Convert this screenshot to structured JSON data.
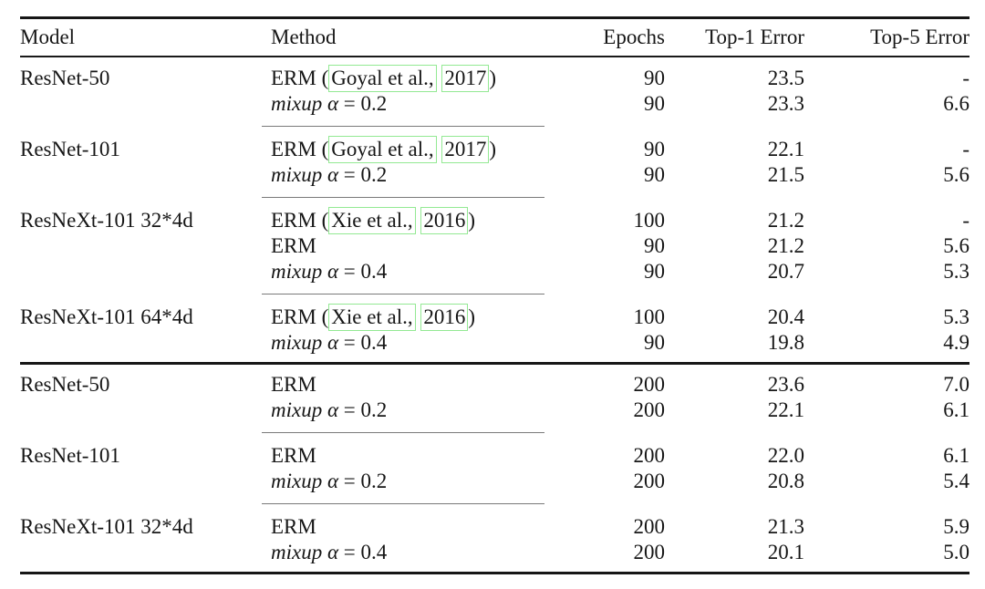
{
  "table": {
    "header": {
      "model": "Model",
      "method": "Method",
      "epochs": "Epochs",
      "top1": "Top-1 Error",
      "top5": "Top-5 Error"
    },
    "colors": {
      "link_box": "#93e993",
      "rule_heavy": "#161616",
      "rule_mid": "#7a7a7a",
      "text": "#161616"
    },
    "sections": [
      {
        "groups": [
          {
            "model": "ResNet-50",
            "rows": [
              {
                "method": [
                  {
                    "t": "ERM (",
                    "s": "plain"
                  },
                  {
                    "t": "Goyal et al.,",
                    "s": "link"
                  },
                  {
                    "t": " ",
                    "s": "plain"
                  },
                  {
                    "t": "2017",
                    "s": "link"
                  },
                  {
                    "t": ")",
                    "s": "plain"
                  }
                ],
                "epochs": "90",
                "top1": "23.5",
                "top5": "-",
                "bold": false
              },
              {
                "method": [
                  {
                    "t": "mixup",
                    "s": "italic"
                  },
                  {
                    "t": " ",
                    "s": "plain"
                  },
                  {
                    "t": "α",
                    "s": "italic"
                  },
                  {
                    "t": " = 0.2",
                    "s": "plain"
                  }
                ],
                "epochs": "90",
                "top1": "23.3",
                "top5": "6.6",
                "bold": true
              }
            ]
          },
          {
            "model": "ResNet-101",
            "rows": [
              {
                "method": [
                  {
                    "t": "ERM (",
                    "s": "plain"
                  },
                  {
                    "t": "Goyal et al.,",
                    "s": "link"
                  },
                  {
                    "t": " ",
                    "s": "plain"
                  },
                  {
                    "t": "2017",
                    "s": "link"
                  },
                  {
                    "t": ")",
                    "s": "plain"
                  }
                ],
                "epochs": "90",
                "top1": "22.1",
                "top5": "-",
                "bold": false
              },
              {
                "method": [
                  {
                    "t": "mixup",
                    "s": "italic"
                  },
                  {
                    "t": " ",
                    "s": "plain"
                  },
                  {
                    "t": "α",
                    "s": "italic"
                  },
                  {
                    "t": " = 0.2",
                    "s": "plain"
                  }
                ],
                "epochs": "90",
                "top1": "21.5",
                "top5": "5.6",
                "bold": true
              }
            ]
          },
          {
            "model": "ResNeXt-101 32*4d",
            "rows": [
              {
                "method": [
                  {
                    "t": "ERM (",
                    "s": "plain"
                  },
                  {
                    "t": "Xie et al.,",
                    "s": "link"
                  },
                  {
                    "t": " ",
                    "s": "plain"
                  },
                  {
                    "t": "2016",
                    "s": "link"
                  },
                  {
                    "t": ")",
                    "s": "plain"
                  }
                ],
                "epochs": "100",
                "top1": "21.2",
                "top5": "-",
                "bold": false
              },
              {
                "method": [
                  {
                    "t": "ERM",
                    "s": "plain"
                  }
                ],
                "epochs": "90",
                "top1": "21.2",
                "top5": "5.6",
                "bold": false
              },
              {
                "method": [
                  {
                    "t": "mixup",
                    "s": "italic"
                  },
                  {
                    "t": " ",
                    "s": "plain"
                  },
                  {
                    "t": "α",
                    "s": "italic"
                  },
                  {
                    "t": " = 0.4",
                    "s": "plain"
                  }
                ],
                "epochs": "90",
                "top1": "20.7",
                "top5": "5.3",
                "bold": true
              }
            ]
          },
          {
            "model": "ResNeXt-101 64*4d",
            "rows": [
              {
                "method": [
                  {
                    "t": "ERM (",
                    "s": "plain"
                  },
                  {
                    "t": "Xie et al.,",
                    "s": "link"
                  },
                  {
                    "t": " ",
                    "s": "plain"
                  },
                  {
                    "t": "2016",
                    "s": "link"
                  },
                  {
                    "t": ")",
                    "s": "plain"
                  }
                ],
                "epochs": "100",
                "top1": "20.4",
                "top5": "5.3",
                "bold": false
              },
              {
                "method": [
                  {
                    "t": "mixup",
                    "s": "italic"
                  },
                  {
                    "t": " ",
                    "s": "plain"
                  },
                  {
                    "t": "α",
                    "s": "italic"
                  },
                  {
                    "t": " = 0.4",
                    "s": "plain"
                  }
                ],
                "epochs": "90",
                "top1": "19.8",
                "top5": "4.9",
                "bold": true
              }
            ]
          }
        ]
      },
      {
        "groups": [
          {
            "model": "ResNet-50",
            "rows": [
              {
                "method": [
                  {
                    "t": "ERM",
                    "s": "plain"
                  }
                ],
                "epochs": "200",
                "top1": "23.6",
                "top5": "7.0",
                "bold": false
              },
              {
                "method": [
                  {
                    "t": "mixup",
                    "s": "italic"
                  },
                  {
                    "t": " ",
                    "s": "plain"
                  },
                  {
                    "t": "α",
                    "s": "italic"
                  },
                  {
                    "t": " = 0.2",
                    "s": "plain"
                  }
                ],
                "epochs": "200",
                "top1": "22.1",
                "top5": "6.1",
                "bold": true
              }
            ]
          },
          {
            "model": "ResNet-101",
            "rows": [
              {
                "method": [
                  {
                    "t": "ERM",
                    "s": "plain"
                  }
                ],
                "epochs": "200",
                "top1": "22.0",
                "top5": "6.1",
                "bold": false
              },
              {
                "method": [
                  {
                    "t": "mixup",
                    "s": "italic"
                  },
                  {
                    "t": " ",
                    "s": "plain"
                  },
                  {
                    "t": "α",
                    "s": "italic"
                  },
                  {
                    "t": " = 0.2",
                    "s": "plain"
                  }
                ],
                "epochs": "200",
                "top1": "20.8",
                "top5": "5.4",
                "bold": true
              }
            ]
          },
          {
            "model": "ResNeXt-101 32*4d",
            "rows": [
              {
                "method": [
                  {
                    "t": "ERM",
                    "s": "plain"
                  }
                ],
                "epochs": "200",
                "top1": "21.3",
                "top5": "5.9",
                "bold": false
              },
              {
                "method": [
                  {
                    "t": "mixup",
                    "s": "italic"
                  },
                  {
                    "t": " ",
                    "s": "plain"
                  },
                  {
                    "t": "α",
                    "s": "italic"
                  },
                  {
                    "t": " = 0.4",
                    "s": "plain"
                  }
                ],
                "epochs": "200",
                "top1": "20.1",
                "top5": "5.0",
                "bold": true
              }
            ]
          }
        ]
      }
    ]
  }
}
